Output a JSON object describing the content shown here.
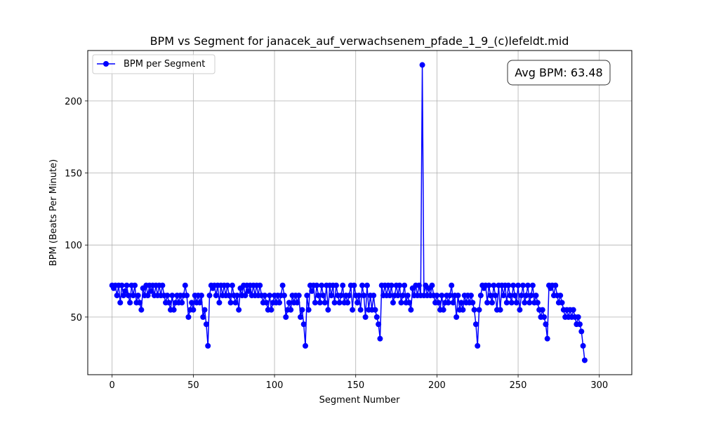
{
  "chart_data": {
    "type": "line",
    "title": "BPM vs Segment for janacek_auf_verwachsenem_pfade_1_9_(c)lefeldt.mid",
    "xlabel": "Segment Number",
    "ylabel": "BPM (Beats Per Minute)",
    "xlim": [
      -15,
      320
    ],
    "ylim": [
      10,
      235
    ],
    "xticks": [
      0,
      50,
      100,
      150,
      200,
      250,
      300
    ],
    "yticks": [
      50,
      100,
      150,
      200
    ],
    "grid": true,
    "legend_position": "top-left",
    "annotation": "Avg BPM: 63.48",
    "series": [
      {
        "name": "BPM per Segment",
        "color": "#0000ff",
        "marker": "circle",
        "values": [
          72,
          70,
          72,
          65,
          72,
          60,
          72,
          65,
          68,
          72,
          65,
          60,
          72,
          65,
          72,
          60,
          65,
          60,
          55,
          70,
          65,
          72,
          65,
          72,
          68,
          72,
          65,
          72,
          65,
          72,
          65,
          72,
          65,
          60,
          65,
          60,
          55,
          65,
          55,
          60,
          65,
          60,
          65,
          60,
          65,
          72,
          65,
          50,
          55,
          60,
          55,
          65,
          60,
          65,
          60,
          65,
          50,
          55,
          45,
          30,
          65,
          72,
          70,
          72,
          65,
          72,
          60,
          72,
          65,
          72,
          65,
          72,
          65,
          60,
          72,
          65,
          60,
          65,
          55,
          70,
          65,
          72,
          65,
          72,
          68,
          72,
          65,
          72,
          65,
          72,
          65,
          72,
          65,
          60,
          65,
          60,
          55,
          65,
          55,
          60,
          65,
          60,
          65,
          60,
          65,
          72,
          65,
          50,
          55,
          60,
          55,
          65,
          60,
          65,
          60,
          65,
          50,
          55,
          45,
          30,
          65,
          55,
          72,
          68,
          72,
          60,
          72,
          65,
          60,
          72,
          65,
          60,
          72,
          55,
          72,
          65,
          72,
          60,
          72,
          65,
          60,
          65,
          72,
          60,
          65,
          60,
          65,
          72,
          55,
          72,
          65,
          60,
          65,
          55,
          72,
          65,
          50,
          72,
          55,
          65,
          55,
          65,
          55,
          50,
          45,
          35,
          72,
          65,
          72,
          65,
          72,
          65,
          72,
          60,
          65,
          72,
          65,
          72,
          60,
          65,
          72,
          60,
          65,
          60,
          55,
          70,
          65,
          72,
          65,
          72,
          65,
          225,
          65,
          72,
          65,
          70,
          65,
          72,
          65,
          60,
          65,
          60,
          55,
          65,
          55,
          60,
          65,
          60,
          65,
          72,
          60,
          65,
          50,
          65,
          55,
          60,
          55,
          65,
          60,
          65,
          60,
          65,
          60,
          55,
          45,
          30,
          55,
          65,
          72,
          70,
          72,
          60,
          72,
          65,
          60,
          72,
          65,
          55,
          72,
          55,
          72,
          65,
          72,
          60,
          72,
          65,
          60,
          72,
          65,
          60,
          72,
          55,
          65,
          72,
          60,
          65,
          72,
          60,
          65,
          72,
          60,
          65,
          60,
          55,
          50,
          55,
          50,
          45,
          35,
          72,
          70,
          72,
          65,
          72,
          65,
          60,
          65,
          60,
          55,
          50,
          55,
          50,
          55,
          50,
          55,
          50,
          45,
          50,
          45,
          40,
          30,
          20
        ]
      }
    ]
  }
}
